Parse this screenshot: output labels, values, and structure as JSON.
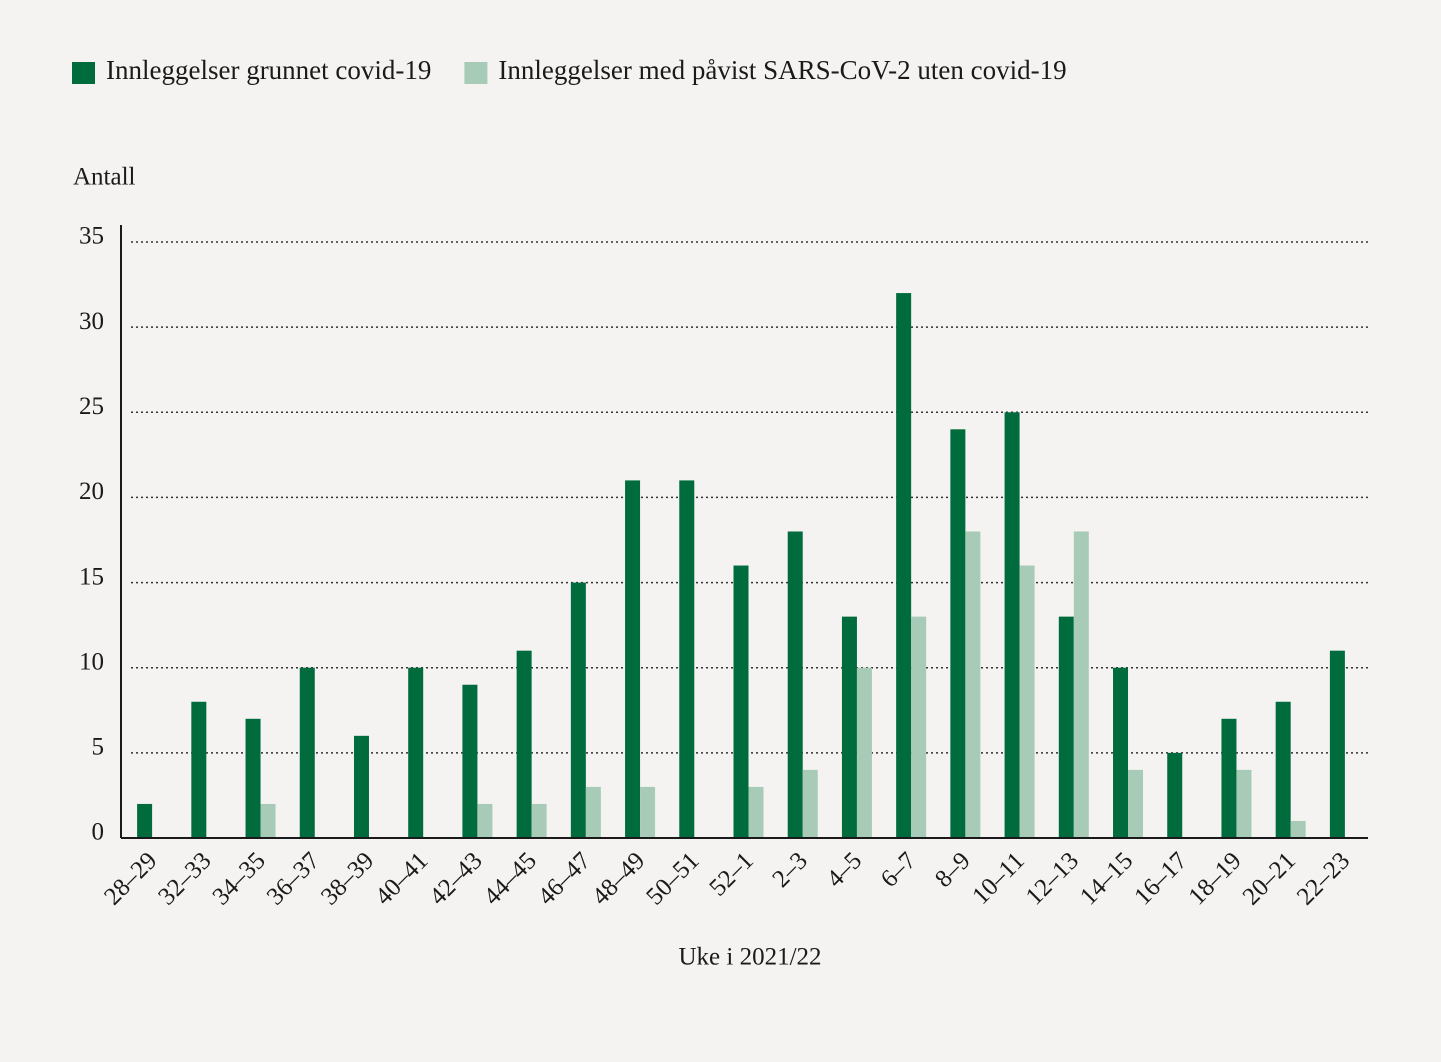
{
  "chart_data": {
    "type": "bar",
    "y_label": "Antall",
    "x_label": "Uke i 2021/22",
    "categories": [
      "28–29",
      "32–33",
      "34–35",
      "36–37",
      "38–39",
      "40–41",
      "42–43",
      "44–45",
      "46–47",
      "48–49",
      "50–51",
      "52–1",
      "2–3",
      "4–5",
      "6–7",
      "8–9",
      "10–11",
      "12–13",
      "14–15",
      "16–17",
      "18–19",
      "20–21",
      "22–23"
    ],
    "series": [
      {
        "name": "Innleggelser grunnet covid-19",
        "color": "#006b3c",
        "values": [
          2,
          8,
          7,
          10,
          6,
          10,
          9,
          11,
          15,
          21,
          21,
          16,
          18,
          13,
          32,
          24,
          25,
          13,
          10,
          5,
          7,
          8,
          11
        ]
      },
      {
        "name": "Innleggelser med påvist SARS-CoV-2 uten covid-19",
        "color": "#a7cbb6",
        "values": [
          0,
          0,
          2,
          0,
          0,
          0,
          2,
          2,
          3,
          3,
          0,
          3,
          4,
          10,
          13,
          18,
          16,
          18,
          4,
          0,
          4,
          1,
          0
        ]
      }
    ],
    "ylim": [
      0,
      35
    ],
    "yticks": [
      0,
      5,
      10,
      15,
      20,
      25,
      30,
      35
    ],
    "grid": true
  }
}
